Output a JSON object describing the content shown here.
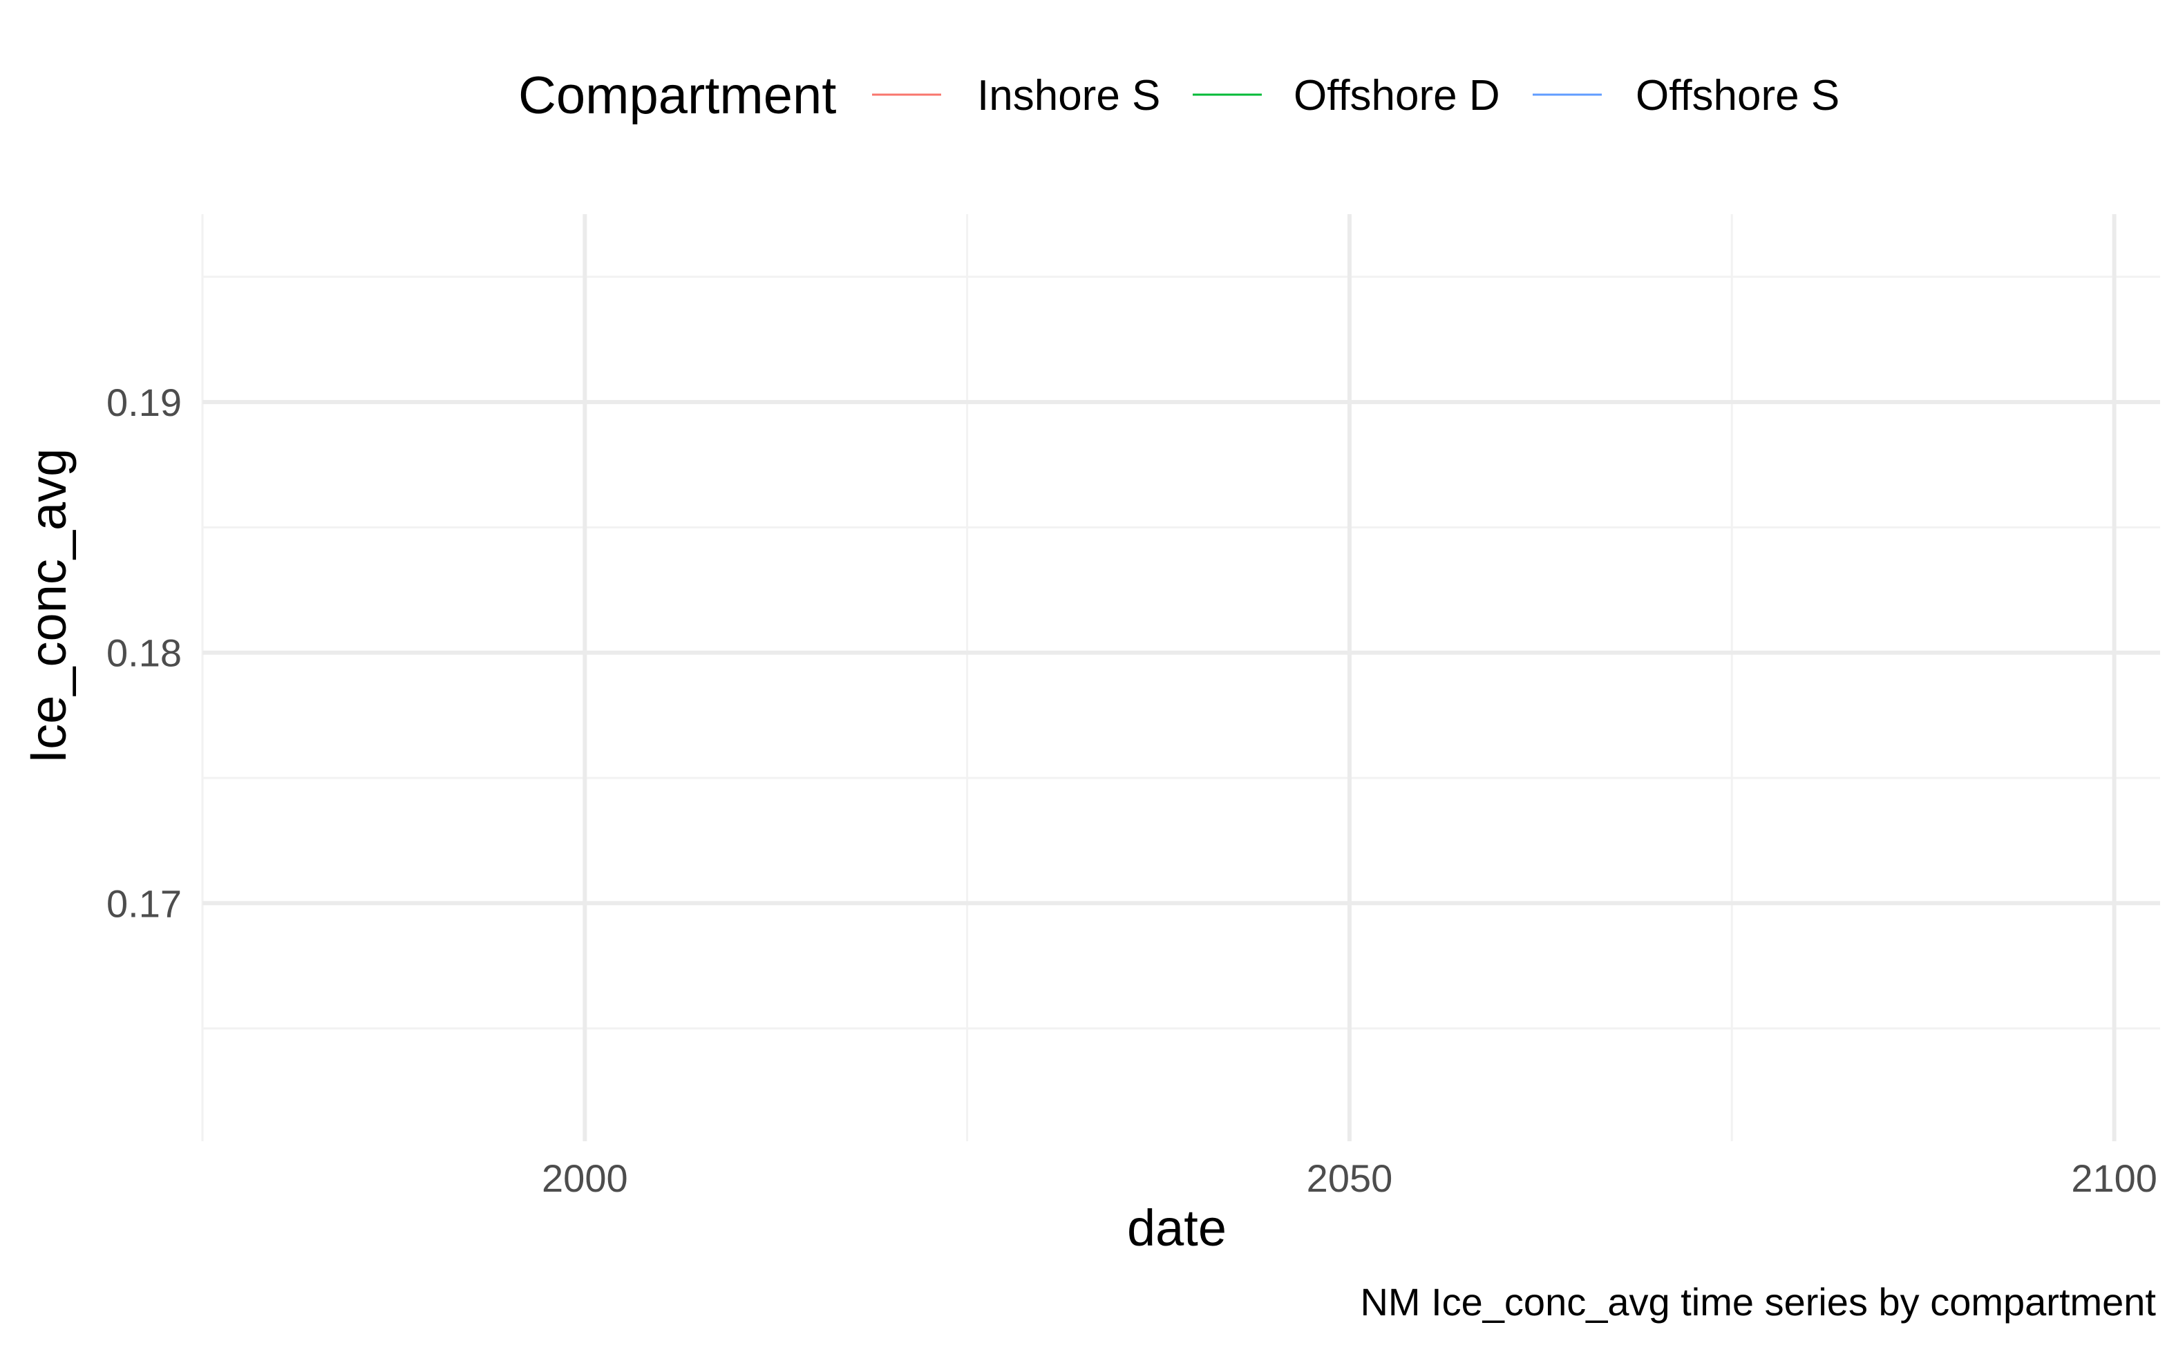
{
  "chart_data": {
    "type": "line",
    "title": "",
    "caption": "NM Ice_conc_avg time series by compartment",
    "xlabel": "date",
    "ylabel": "Ice_conc_avg",
    "xlim": [
      1975,
      2103
    ],
    "ylim": [
      0.1605,
      0.1975
    ],
    "x_ticks": [
      2000,
      2050,
      2100
    ],
    "x_tick_labels": [
      "2000",
      "2050",
      "2100"
    ],
    "x_minor_ticks": [
      1975,
      2025,
      2075
    ],
    "y_ticks": [
      0.17,
      0.18,
      0.19
    ],
    "y_tick_labels": [
      "0.17",
      "0.18",
      "0.19"
    ],
    "y_minor_ticks": [
      0.165,
      0.175,
      0.185,
      0.195
    ],
    "grid": true,
    "legend": {
      "title": "Compartment",
      "position": "top",
      "entries": [
        {
          "name": "Inshore S",
          "color": "#F8766D"
        },
        {
          "name": "Offshore D",
          "color": "#00BA38"
        },
        {
          "name": "Offshore S",
          "color": "#619CFF"
        }
      ]
    },
    "series": [
      {
        "name": "Inshore S",
        "color": "#F8766D",
        "x": [],
        "y": []
      },
      {
        "name": "Offshore D",
        "color": "#00BA38",
        "x": [],
        "y": []
      },
      {
        "name": "Offshore S",
        "color": "#619CFF",
        "x": [],
        "y": []
      }
    ]
  },
  "colors": {
    "grid_major": "#ebebeb",
    "grid_minor": "#f2f2f2",
    "tick_text": "#4d4d4d",
    "text": "#000000",
    "background": "#ffffff"
  }
}
